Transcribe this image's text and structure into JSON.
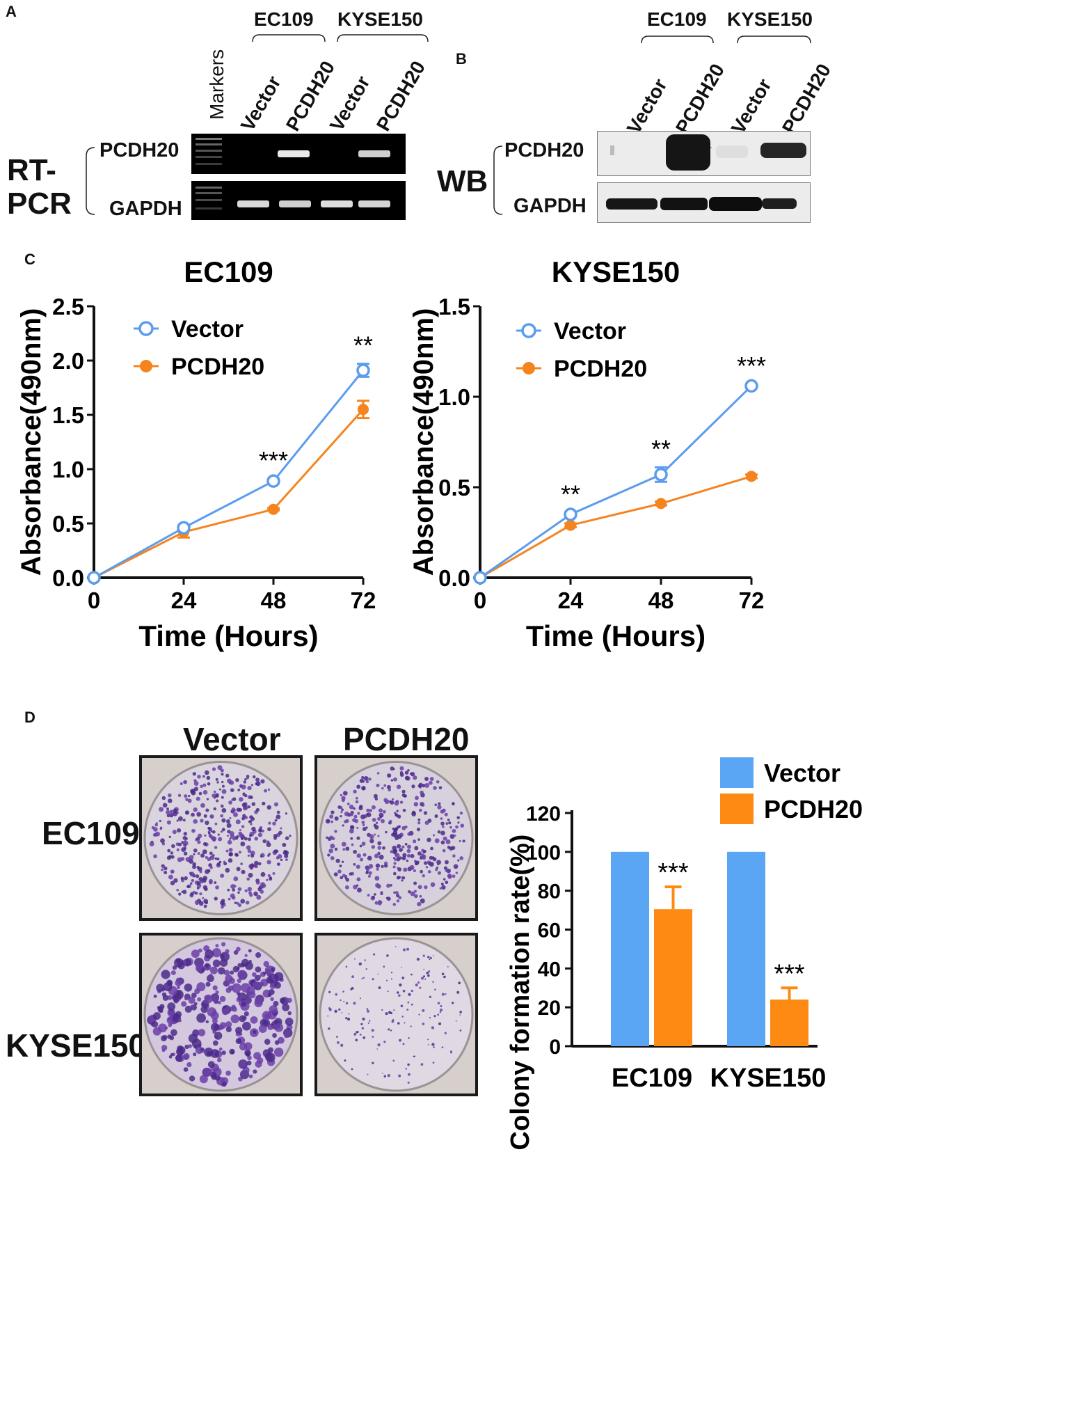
{
  "panels": {
    "a": "A",
    "b": "B",
    "c": "C",
    "d": "D"
  },
  "panel_a": {
    "groups": [
      "EC109",
      "KYSE150"
    ],
    "lanes": [
      "Markers",
      "Vector",
      "PCDH20",
      "Vector",
      "PCDH20"
    ],
    "rows": [
      "PCDH20",
      "GAPDH"
    ],
    "method_line1": "RT-",
    "method_line2": "PCR"
  },
  "panel_b": {
    "groups": [
      "EC109",
      "KYSE150"
    ],
    "lanes": [
      "Vector",
      "PCDH20",
      "Vector",
      "PCDH20"
    ],
    "rows": [
      "PCDH20",
      "GAPDH"
    ],
    "method": "WB"
  },
  "panel_d": {
    "columns": [
      "Vector",
      "PCDH20"
    ],
    "rows": [
      "EC109",
      "KYSE150"
    ]
  },
  "colors": {
    "vector": "#5b9cef",
    "pcdh20": "#f5841f",
    "bar_vector": "#5aa6f5",
    "bar_pcdh20": "#fd8a12"
  },
  "chart_data": [
    {
      "type": "line",
      "title": "EC109",
      "xlabel": "Time (Hours)",
      "ylabel": "Absorbance(490nm)",
      "x": [
        0,
        24,
        48,
        72
      ],
      "xticks": [
        "0",
        "24",
        "48",
        "72"
      ],
      "yticks": [
        "0.0",
        "0.5",
        "1.0",
        "1.5",
        "2.0",
        "2.5"
      ],
      "ylim": [
        0,
        2.5
      ],
      "xlim": [
        0,
        72
      ],
      "series": [
        {
          "name": "Vector",
          "values": [
            0,
            0.46,
            0.89,
            1.91
          ],
          "errors": [
            0,
            0.02,
            0.02,
            0.06
          ],
          "marker": "open-circle"
        },
        {
          "name": "PCDH20",
          "values": [
            0,
            0.42,
            0.63,
            1.55
          ],
          "errors": [
            0,
            0.05,
            0.01,
            0.08
          ],
          "marker": "filled-circle"
        }
      ],
      "annotations": [
        {
          "x": 48,
          "text": "***"
        },
        {
          "x": 72,
          "text": "**"
        }
      ],
      "legend": "top-left"
    },
    {
      "type": "line",
      "title": "KYSE150",
      "xlabel": "Time (Hours)",
      "ylabel": "Absorbance(490nm)",
      "x": [
        0,
        24,
        48,
        72
      ],
      "xticks": [
        "0",
        "24",
        "48",
        "72"
      ],
      "yticks": [
        "0.0",
        "0.5",
        "1.0",
        "1.5"
      ],
      "ylim": [
        0,
        1.5
      ],
      "xlim": [
        0,
        72
      ],
      "series": [
        {
          "name": "Vector",
          "values": [
            0,
            0.35,
            0.57,
            1.06
          ],
          "errors": [
            0,
            0.01,
            0.04,
            0.01
          ],
          "marker": "open-circle"
        },
        {
          "name": "PCDH20",
          "values": [
            0,
            0.29,
            0.41,
            0.56
          ],
          "errors": [
            0,
            0.01,
            0.01,
            0.01
          ],
          "marker": "filled-circle"
        }
      ],
      "annotations": [
        {
          "x": 24,
          "text": "**"
        },
        {
          "x": 48,
          "text": "**"
        },
        {
          "x": 72,
          "text": "***"
        }
      ],
      "legend": "top-left"
    },
    {
      "type": "bar",
      "ylabel": "Colony formation rate(%)",
      "categories": [
        "EC109",
        "KYSE150"
      ],
      "yticks": [
        "0",
        "20",
        "40",
        "60",
        "80",
        "100",
        "120"
      ],
      "ylim": [
        0,
        120
      ],
      "series": [
        {
          "name": "Vector",
          "values": [
            100,
            100
          ],
          "errors": [
            0,
            0
          ]
        },
        {
          "name": "PCDH20",
          "values": [
            70.5,
            24
          ],
          "errors": [
            11.5,
            6
          ]
        }
      ],
      "annotations": [
        {
          "category": "EC109",
          "series": "PCDH20",
          "text": "***"
        },
        {
          "category": "KYSE150",
          "series": "PCDH20",
          "text": "***"
        }
      ],
      "legend": "top-right"
    }
  ]
}
